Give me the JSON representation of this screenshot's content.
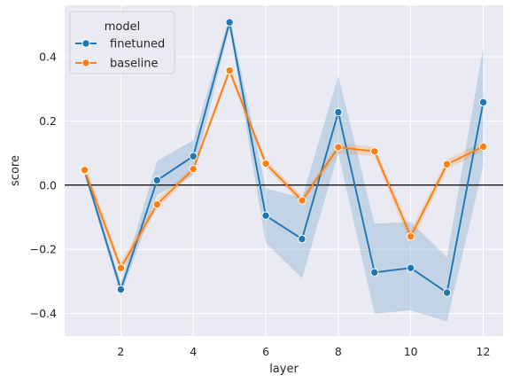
{
  "chart_data": {
    "type": "line",
    "xlabel": "layer",
    "ylabel": "score",
    "xlim": [
      0.45,
      12.55
    ],
    "ylim": [
      -0.47,
      0.56
    ],
    "x_ticks": [
      2,
      4,
      6,
      8,
      10,
      12
    ],
    "y_ticks": [
      -0.4,
      -0.2,
      0.0,
      0.2,
      0.4
    ],
    "y_tick_labels": [
      "−0.4",
      "−0.2",
      "0.0",
      "0.2",
      "0.4"
    ],
    "grid": true,
    "reference_line_y": 0,
    "legend": {
      "title": "model",
      "placement": "top-left"
    },
    "x": [
      1,
      2,
      3,
      4,
      5,
      6,
      7,
      8,
      9,
      10,
      11,
      12
    ],
    "series": [
      {
        "name": "finetuned",
        "color": "#1f77b4",
        "values": [
          0.045,
          -0.325,
          0.015,
          0.09,
          0.507,
          -0.095,
          -0.168,
          0.227,
          -0.272,
          -0.258,
          -0.335,
          0.258
        ],
        "ci_low": [
          0.03,
          -0.345,
          -0.03,
          0.03,
          0.49,
          -0.18,
          -0.29,
          0.1,
          -0.4,
          -0.39,
          -0.425,
          0.06
        ],
        "ci_high": [
          0.06,
          -0.305,
          0.075,
          0.14,
          0.527,
          -0.01,
          -0.04,
          0.34,
          -0.12,
          -0.115,
          -0.225,
          0.43
        ]
      },
      {
        "name": "baseline",
        "color": "#ff7f0e",
        "values": [
          0.047,
          -0.258,
          -0.06,
          0.05,
          0.357,
          0.067,
          -0.048,
          0.118,
          0.105,
          -0.16,
          0.065,
          0.12
        ],
        "ci_low": [
          0.025,
          -0.275,
          -0.075,
          0.04,
          0.345,
          0.055,
          -0.06,
          0.1,
          0.09,
          -0.185,
          0.05,
          0.105
        ],
        "ci_high": [
          0.07,
          -0.24,
          -0.045,
          0.062,
          0.37,
          0.08,
          -0.035,
          0.13,
          0.12,
          -0.14,
          0.08,
          0.135
        ]
      }
    ]
  }
}
